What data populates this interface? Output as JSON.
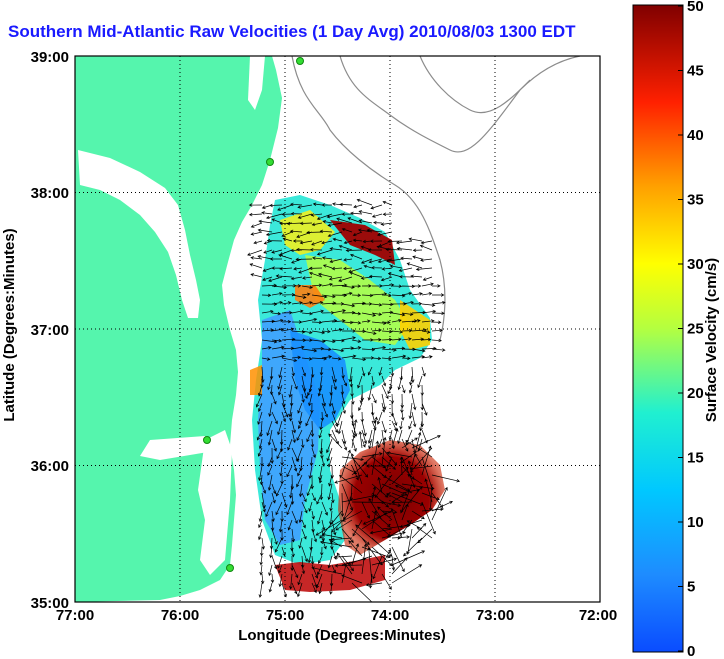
{
  "title": "Southern Mid-Atlantic Raw Velocities (1 Day Avg) 2010/08/03 1300 EDT",
  "map": {
    "xlabel": "Longitude (Degrees:Minutes)",
    "ylabel": "Latitude (Degrees:Minutes)",
    "x_ticks": [
      "77:00",
      "76:00",
      "75:00",
      "74:00",
      "73:00",
      "72:00"
    ],
    "y_ticks": [
      "39:00",
      "38:00",
      "37:00",
      "36:00",
      "35:00"
    ],
    "lon_range": [
      -77,
      -72
    ],
    "lat_range": [
      35,
      39
    ],
    "grid": "dotted"
  },
  "colorbar": {
    "label": "Surface Velocity (cm/s)",
    "ticks": [
      "50",
      "45",
      "40",
      "35",
      "30",
      "25",
      "20",
      "15",
      "10",
      "5",
      "0"
    ],
    "range": [
      0,
      50
    ],
    "colormap": "jet"
  },
  "colors": {
    "land": "#55f5ad",
    "title": "#1a1aff",
    "station": "#33dd33",
    "isobath": "#8c8c8c"
  }
}
